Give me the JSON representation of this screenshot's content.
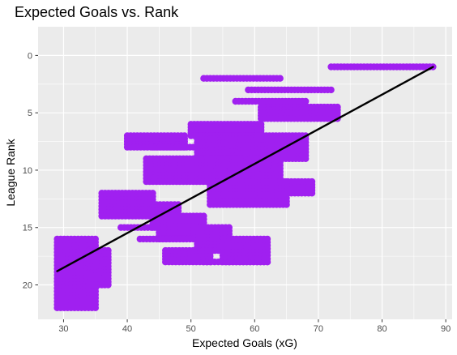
{
  "chart_data": {
    "type": "scatter",
    "title": "Expected Goals vs. Rank",
    "xlabel": "Expected Goals (xG)",
    "ylabel": "League Rank",
    "xlim": [
      26,
      91
    ],
    "ylim": [
      23.0,
      -2.5
    ],
    "y_reversed": true,
    "grid": true,
    "x_ticks": [
      30,
      40,
      50,
      60,
      70,
      80,
      90
    ],
    "y_ticks": [
      0,
      5,
      10,
      15,
      20
    ],
    "point_color": "#A020F0",
    "trend_line": {
      "color": "#000000",
      "x": [
        29,
        88
      ],
      "y": [
        18.8,
        1.0
      ]
    },
    "point_clusters": [
      {
        "x": [
          72,
          88
        ],
        "y": [
          1,
          1
        ]
      },
      {
        "x": [
          52,
          64
        ],
        "y": [
          2,
          2
        ]
      },
      {
        "x": [
          59,
          72
        ],
        "y": [
          3,
          3
        ]
      },
      {
        "x": [
          57,
          68
        ],
        "y": [
          4,
          4
        ]
      },
      {
        "x": [
          61,
          73
        ],
        "y": [
          4.5,
          5.5
        ]
      },
      {
        "x": [
          50,
          61
        ],
        "y": [
          6,
          7
        ]
      },
      {
        "x": [
          40,
          49
        ],
        "y": [
          7,
          8
        ]
      },
      {
        "x": [
          44,
          52
        ],
        "y": [
          8,
          8
        ]
      },
      {
        "x": [
          51,
          68
        ],
        "y": [
          7,
          9
        ]
      },
      {
        "x": [
          43,
          53
        ],
        "y": [
          9,
          11
        ]
      },
      {
        "x": [
          53,
          64
        ],
        "y": [
          9,
          11
        ]
      },
      {
        "x": [
          62,
          69
        ],
        "y": [
          11,
          12
        ]
      },
      {
        "x": [
          53,
          65
        ],
        "y": [
          11,
          13
        ]
      },
      {
        "x": [
          36,
          44
        ],
        "y": [
          12,
          14
        ]
      },
      {
        "x": [
          44,
          48
        ],
        "y": [
          13,
          15
        ]
      },
      {
        "x": [
          39,
          48
        ],
        "y": [
          15,
          15
        ]
      },
      {
        "x": [
          45,
          52
        ],
        "y": [
          14,
          16
        ]
      },
      {
        "x": [
          42,
          53
        ],
        "y": [
          16,
          16
        ]
      },
      {
        "x": [
          51,
          56
        ],
        "y": [
          15,
          17
        ]
      },
      {
        "x": [
          46,
          53
        ],
        "y": [
          17,
          18
        ]
      },
      {
        "x": [
          55,
          62
        ],
        "y": [
          16,
          18
        ]
      },
      {
        "x": [
          52,
          56
        ],
        "y": [
          18,
          18
        ]
      },
      {
        "x": [
          56,
          62
        ],
        "y": [
          18,
          18
        ]
      },
      {
        "x": [
          29,
          35
        ],
        "y": [
          16,
          22
        ]
      },
      {
        "x": [
          34,
          37
        ],
        "y": [
          17,
          20
        ]
      }
    ]
  }
}
